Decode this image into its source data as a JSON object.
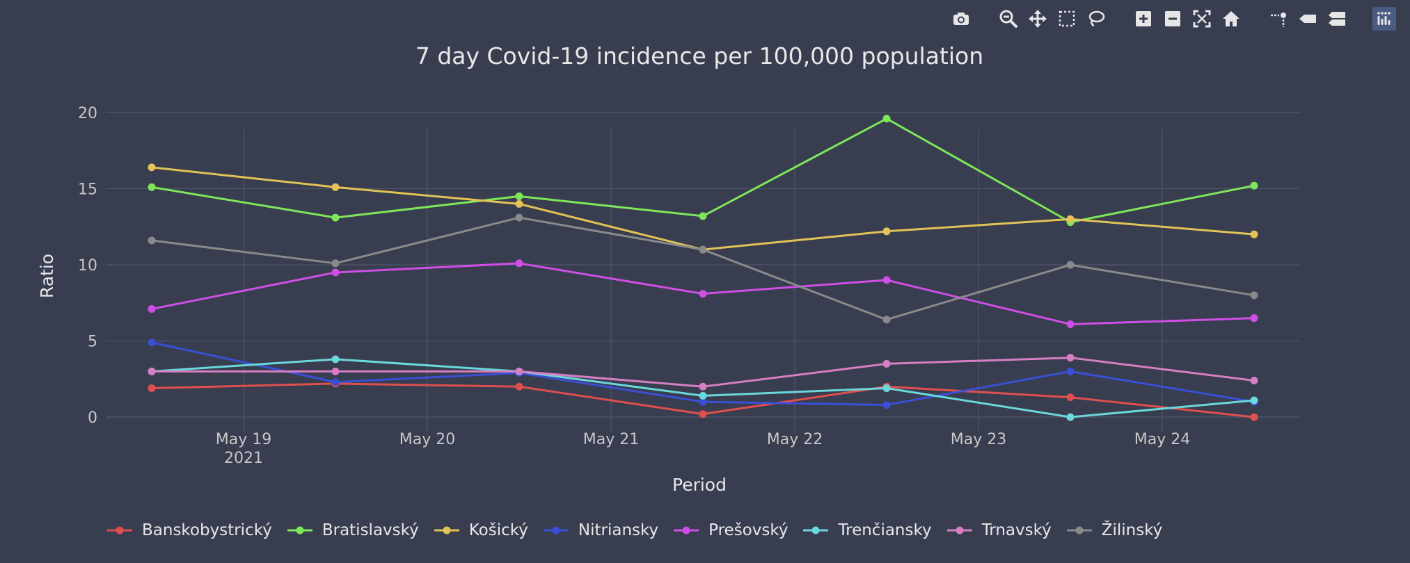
{
  "toolbar": {
    "tools": [
      {
        "name": "camera-icon"
      },
      {
        "name": "zoom-icon"
      },
      {
        "name": "pan-icon"
      },
      {
        "name": "box-select-icon"
      },
      {
        "name": "lasso-select-icon"
      },
      {
        "name": "zoom-in-icon"
      },
      {
        "name": "zoom-out-icon"
      },
      {
        "name": "autoscale-icon"
      },
      {
        "name": "reset-axes-icon"
      },
      {
        "name": "spike-lines-icon"
      },
      {
        "name": "hover-closest-icon"
      },
      {
        "name": "hover-compare-icon"
      },
      {
        "name": "plotly-logo-icon"
      }
    ]
  },
  "colors": {
    "background": "#383d4f",
    "grid": "#50566a",
    "text": "#e8e8e8",
    "tick_text": "#c8c8c8"
  },
  "chart_data": {
    "type": "line",
    "title": "7 day Covid-19 incidence per 100,000 population",
    "xlabel": "Period",
    "ylabel": "Ratio",
    "x": [
      "2021-05-18 12:00",
      "2021-05-19 12:00",
      "2021-05-20 12:00",
      "2021-05-21 12:00",
      "2021-05-22 12:00",
      "2021-05-23 12:00",
      "2021-05-24 12:00"
    ],
    "x_ticks": [
      {
        "date": "2021-05-19",
        "label": "May 19",
        "sublabel": "2021"
      },
      {
        "date": "2021-05-20",
        "label": "May 20",
        "sublabel": ""
      },
      {
        "date": "2021-05-21",
        "label": "May 21",
        "sublabel": ""
      },
      {
        "date": "2021-05-22",
        "label": "May 22",
        "sublabel": ""
      },
      {
        "date": "2021-05-23",
        "label": "May 23",
        "sublabel": ""
      },
      {
        "date": "2021-05-24",
        "label": "May 24",
        "sublabel": ""
      }
    ],
    "xlim": [
      "2021-05-18 06:00",
      "2021-05-24 18:00"
    ],
    "ylim": [
      -1,
      21
    ],
    "y_ticks": [
      0,
      5,
      10,
      15,
      20
    ],
    "grid": true,
    "legend": "bottom",
    "series": [
      {
        "name": "Banskobystrický",
        "color": "#e04f4f",
        "values": [
          1.9,
          2.2,
          2.0,
          0.2,
          2.0,
          1.3,
          0.0
        ]
      },
      {
        "name": "Bratislavský",
        "color": "#7fe65a",
        "values": [
          15.1,
          13.1,
          14.5,
          13.2,
          19.6,
          12.8,
          15.2
        ]
      },
      {
        "name": "Košický",
        "color": "#e3c356",
        "values": [
          16.4,
          15.1,
          14.0,
          11.0,
          12.2,
          13.0,
          12.0
        ]
      },
      {
        "name": "Nitriansky",
        "color": "#3b4fd6",
        "values": [
          4.9,
          2.3,
          2.9,
          1.0,
          0.8,
          3.0,
          1.0
        ]
      },
      {
        "name": "Prešovský",
        "color": "#cf4fe6",
        "values": [
          7.1,
          9.5,
          10.1,
          8.1,
          9.0,
          6.1,
          6.5
        ]
      },
      {
        "name": "Trenčiansky",
        "color": "#6ad8dc",
        "values": [
          3.0,
          3.8,
          3.0,
          1.4,
          1.9,
          0.0,
          1.1
        ]
      },
      {
        "name": "Trnavský",
        "color": "#d67fc2",
        "values": [
          3.0,
          3.0,
          3.0,
          2.0,
          3.5,
          3.9,
          2.4
        ]
      },
      {
        "name": "Žilinský",
        "color": "#8a8a8a",
        "values": [
          11.6,
          10.1,
          13.1,
          11.0,
          6.4,
          10.0,
          8.0
        ]
      }
    ]
  }
}
